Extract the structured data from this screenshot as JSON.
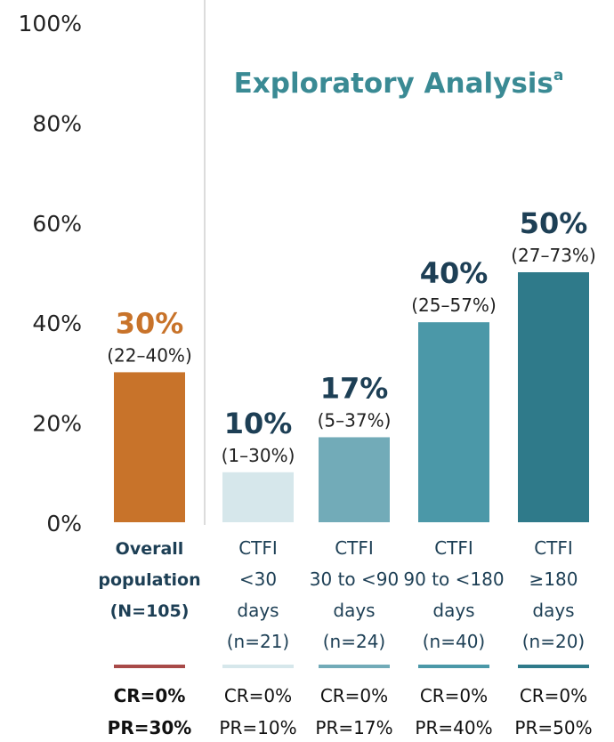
{
  "chart_data": {
    "type": "bar",
    "title": "Exploratory Analysis",
    "title_superscript": "a",
    "ylim": [
      0,
      100
    ],
    "yticks": [
      "0%",
      "20%",
      "40%",
      "60%",
      "80%",
      "100%"
    ],
    "grid": false,
    "categories": [
      {
        "lines": [
          "Overall",
          "population",
          "(N=105)"
        ],
        "bold": true
      },
      {
        "lines": [
          "CTFI",
          "<30",
          "days",
          "(n=21)"
        ],
        "bold": false
      },
      {
        "lines": [
          "CTFI",
          "30 to <90",
          "days",
          "(n=24)"
        ],
        "bold": false
      },
      {
        "lines": [
          "CTFI",
          "90 to <180",
          "days",
          "(n=40)"
        ],
        "bold": false
      },
      {
        "lines": [
          "CTFI",
          "≥180",
          "days",
          "(n=20)"
        ],
        "bold": false
      }
    ],
    "values": [
      30,
      10,
      17,
      40,
      50
    ],
    "value_labels": [
      "30%",
      "10%",
      "17%",
      "40%",
      "50%"
    ],
    "ci_labels": [
      "(22–40%)",
      "(1–30%)",
      "(5–37%)",
      "(25–57%)",
      "(27–73%)"
    ],
    "cr_labels": [
      "CR=0%",
      "CR=0%",
      "CR=0%",
      "CR=0%",
      "CR=0%"
    ],
    "pr_labels": [
      "PR=30%",
      "PR=10%",
      "PR=17%",
      "PR=40%",
      "PR=50%"
    ],
    "bar_colors": [
      "#c8732a",
      "#d6e7eb",
      "#72abb8",
      "#4b98a8",
      "#2f7a8a"
    ],
    "legend_line_colors": [
      "#a84a48",
      "#d6e7eb",
      "#72abb8",
      "#4b98a8",
      "#2f7a8a"
    ],
    "value_label_colors": [
      "#c8732a",
      "#1d3f55",
      "#1d3f55",
      "#1d3f55",
      "#1d3f55"
    ],
    "title_color": "#3a8a94",
    "category_color": "#1d3f55"
  }
}
